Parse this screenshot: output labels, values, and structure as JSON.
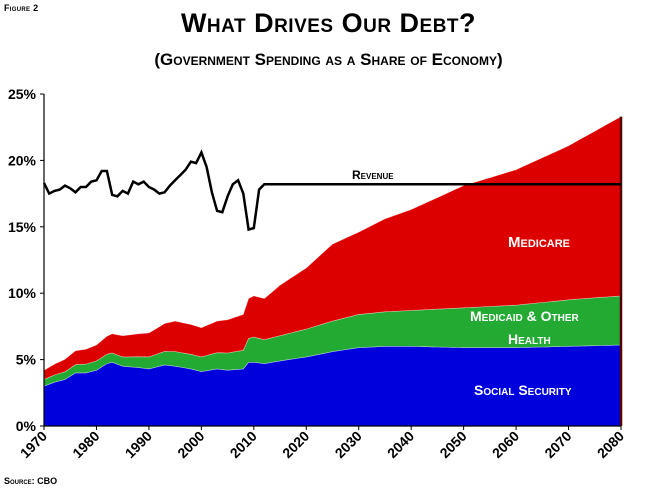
{
  "figure_label": "Figure 2",
  "title": "What Drives Our Debt?",
  "subtitle": "(Government Spending as a Share of Economy)",
  "source": "Source: CBO",
  "chart_data": {
    "type": "area",
    "title": "What Drives Our Debt?",
    "subtitle": "(Government Spending as a Share of Economy)",
    "xlabel": "",
    "ylabel": "",
    "xlim": [
      1970,
      2080
    ],
    "ylim": [
      0,
      25
    ],
    "x_ticks": [
      1970,
      1980,
      1990,
      2000,
      2010,
      2020,
      2030,
      2040,
      2050,
      2060,
      2070,
      2080
    ],
    "y_ticks": [
      "0%",
      "5%",
      "10%",
      "15%",
      "20%",
      "25%"
    ],
    "grid": false,
    "stacked": true,
    "series": [
      {
        "name": "Social Security",
        "color": "#0000dd",
        "points": [
          [
            1970,
            3.0
          ],
          [
            1972,
            3.3
          ],
          [
            1974,
            3.5
          ],
          [
            1976,
            4.0
          ],
          [
            1978,
            4.0
          ],
          [
            1980,
            4.2
          ],
          [
            1982,
            4.7
          ],
          [
            1983,
            4.8
          ],
          [
            1985,
            4.5
          ],
          [
            1988,
            4.4
          ],
          [
            1990,
            4.3
          ],
          [
            1993,
            4.6
          ],
          [
            1995,
            4.5
          ],
          [
            1998,
            4.3
          ],
          [
            2000,
            4.1
          ],
          [
            2003,
            4.3
          ],
          [
            2005,
            4.2
          ],
          [
            2008,
            4.3
          ],
          [
            2009,
            4.8
          ],
          [
            2010,
            4.8
          ],
          [
            2012,
            4.7
          ],
          [
            2015,
            4.9
          ],
          [
            2020,
            5.2
          ],
          [
            2025,
            5.6
          ],
          [
            2030,
            5.9
          ],
          [
            2035,
            6.0
          ],
          [
            2040,
            6.0
          ],
          [
            2050,
            5.9
          ],
          [
            2060,
            5.9
          ],
          [
            2070,
            6.0
          ],
          [
            2080,
            6.1
          ]
        ]
      },
      {
        "name": "Medicaid & Other Health",
        "color": "#22aa33",
        "points": [
          [
            1970,
            0.5
          ],
          [
            1975,
            0.6
          ],
          [
            1980,
            0.7
          ],
          [
            1985,
            0.7
          ],
          [
            1990,
            0.9
          ],
          [
            1995,
            1.1
          ],
          [
            2000,
            1.1
          ],
          [
            2005,
            1.3
          ],
          [
            2008,
            1.4
          ],
          [
            2009,
            1.8
          ],
          [
            2010,
            1.9
          ],
          [
            2012,
            1.8
          ],
          [
            2015,
            1.9
          ],
          [
            2020,
            2.1
          ],
          [
            2025,
            2.3
          ],
          [
            2030,
            2.5
          ],
          [
            2040,
            2.7
          ],
          [
            2050,
            3.0
          ],
          [
            2060,
            3.2
          ],
          [
            2070,
            3.5
          ],
          [
            2080,
            3.7
          ]
        ]
      },
      {
        "name": "Medicare",
        "color": "#dd0000",
        "points": [
          [
            1970,
            0.7
          ],
          [
            1975,
            1.0
          ],
          [
            1980,
            1.2
          ],
          [
            1985,
            1.6
          ],
          [
            1990,
            1.8
          ],
          [
            1995,
            2.3
          ],
          [
            2000,
            2.2
          ],
          [
            2005,
            2.5
          ],
          [
            2008,
            2.7
          ],
          [
            2009,
            3.0
          ],
          [
            2010,
            3.1
          ],
          [
            2012,
            3.1
          ],
          [
            2015,
            3.8
          ],
          [
            2020,
            4.6
          ],
          [
            2025,
            5.8
          ],
          [
            2030,
            6.2
          ],
          [
            2035,
            7.0
          ],
          [
            2040,
            7.6
          ],
          [
            2045,
            8.4
          ],
          [
            2050,
            9.2
          ],
          [
            2060,
            10.2
          ],
          [
            2070,
            11.6
          ],
          [
            2080,
            13.5
          ]
        ]
      }
    ],
    "line": {
      "name": "Revenue",
      "color": "#000000",
      "points": [
        [
          1970,
          18.3
        ],
        [
          1971,
          17.5
        ],
        [
          1972,
          17.7
        ],
        [
          1973,
          17.8
        ],
        [
          1974,
          18.1
        ],
        [
          1975,
          17.9
        ],
        [
          1976,
          17.6
        ],
        [
          1977,
          18.0
        ],
        [
          1978,
          18.0
        ],
        [
          1979,
          18.4
        ],
        [
          1980,
          18.5
        ],
        [
          1981,
          19.2
        ],
        [
          1982,
          19.2
        ],
        [
          1983,
          17.4
        ],
        [
          1984,
          17.3
        ],
        [
          1985,
          17.7
        ],
        [
          1986,
          17.5
        ],
        [
          1987,
          18.4
        ],
        [
          1988,
          18.2
        ],
        [
          1989,
          18.4
        ],
        [
          1990,
          18.0
        ],
        [
          1991,
          17.8
        ],
        [
          1992,
          17.5
        ],
        [
          1993,
          17.6
        ],
        [
          1994,
          18.1
        ],
        [
          1995,
          18.5
        ],
        [
          1996,
          18.9
        ],
        [
          1997,
          19.3
        ],
        [
          1998,
          19.9
        ],
        [
          1999,
          19.8
        ],
        [
          2000,
          20.6
        ],
        [
          2001,
          19.5
        ],
        [
          2002,
          17.6
        ],
        [
          2003,
          16.2
        ],
        [
          2004,
          16.1
        ],
        [
          2005,
          17.3
        ],
        [
          2006,
          18.2
        ],
        [
          2007,
          18.5
        ],
        [
          2008,
          17.5
        ],
        [
          2009,
          14.8
        ],
        [
          2010,
          14.9
        ],
        [
          2011,
          17.8
        ],
        [
          2012,
          18.2
        ],
        [
          2080,
          18.2
        ]
      ]
    },
    "labels": {
      "revenue": "Revenue",
      "medicare": "Medicare",
      "medicaid_line1": "Medicaid & Other",
      "medicaid_line2": "Health",
      "social_security": "Social Security"
    }
  }
}
